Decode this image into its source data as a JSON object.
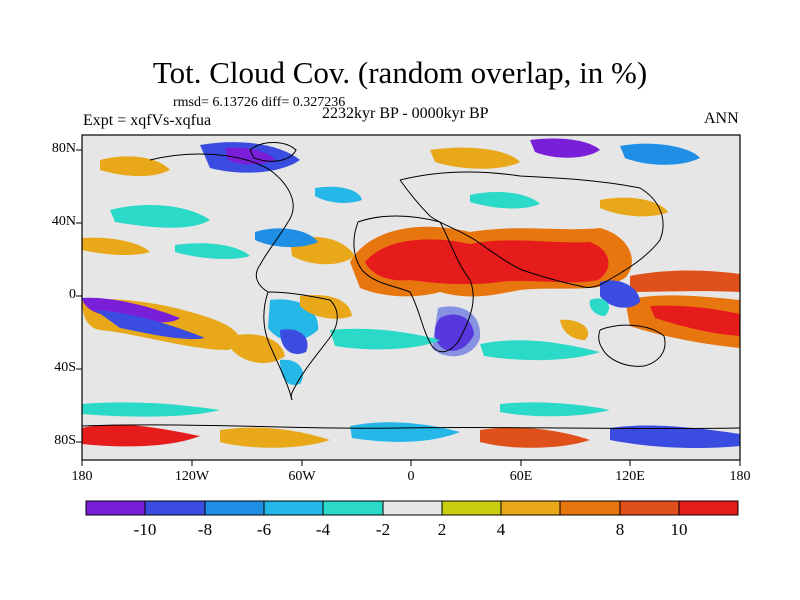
{
  "title": "Tot. Cloud Cov. (random overlap, in %)",
  "stats": "rmsd= 6.13726 diff= 0.327236",
  "period": "2232kyr BP - 0000kyr BP",
  "experiment": "Expt = xqfVs-xqfua",
  "season": "ANN",
  "lat_ticks": [
    "80N",
    "40N",
    "0",
    "40S",
    "80S"
  ],
  "lon_ticks": [
    "180",
    "120W",
    "60W",
    "0",
    "60E",
    "120E",
    "180"
  ],
  "colorbar": {
    "labels": [
      "-10",
      "-8",
      "-6",
      "-4",
      "-2",
      "2",
      "4",
      "8",
      "10"
    ],
    "colors": [
      "#7a1fd8",
      "#3a4de0",
      "#1f8fe6",
      "#24b7e8",
      "#2bd9c9",
      "#e6e6e6",
      "#c8cf10",
      "#e8a81a",
      "#e8760f",
      "#e0501a",
      "#e61c1c"
    ]
  }
}
